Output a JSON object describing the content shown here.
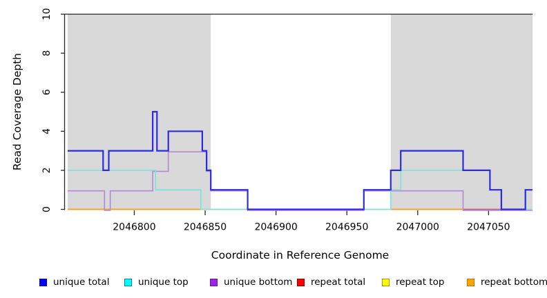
{
  "chart_data": {
    "type": "line",
    "subtype": "step-coverage",
    "title": "",
    "xlabel": "Coordinate in Reference Genome",
    "ylabel": "Read Coverage Depth",
    "xlim": [
      2046753,
      2047081
    ],
    "ylim": [
      0,
      10
    ],
    "grid": false,
    "x_ticks": [
      2046800,
      2046850,
      2046900,
      2046950,
      2047000,
      2047050
    ],
    "x_tick_labels": [
      "2046800",
      "2046850",
      "2046900",
      "2046950",
      "2047000",
      "2047050"
    ],
    "y_ticks": [
      0,
      2,
      4,
      6,
      8,
      10
    ],
    "y_tick_labels": [
      "0",
      "2",
      "4",
      "6",
      "8",
      "10"
    ],
    "shade_color": "#D9D9D9",
    "shaded_regions": [
      {
        "from": 2046753,
        "to": 2046854
      },
      {
        "from": 2046981,
        "to": 2047081
      }
    ],
    "series": [
      {
        "name": "zero-baseline",
        "color": "#98CD98",
        "width": 1.6,
        "y_offset": 0,
        "segments": [
          [
            [
              2046753,
              0
            ],
            [
              2047081,
              0
            ]
          ]
        ]
      },
      {
        "name": "repeat top",
        "color": "#FFFF00",
        "width": 1.6,
        "y_offset": 0,
        "segments": []
      },
      {
        "name": "repeat total",
        "color": "#CE5F72",
        "width": 1.8,
        "y_offset": 0,
        "segments": [
          [
            [
              2047032,
              0
            ],
            [
              2047059,
              0
            ]
          ]
        ]
      },
      {
        "name": "repeat bottom",
        "color": "#FF9E22",
        "width": 2,
        "y_offset": 0,
        "segments": [
          [
            [
              2046753,
              0
            ],
            [
              2046854,
              0
            ]
          ],
          [
            [
              2046981,
              0
            ],
            [
              2047032,
              0
            ]
          ]
        ]
      },
      {
        "name": "unique bottom",
        "color": "#B685D8",
        "width": 1.6,
        "y_offset": 1.5,
        "segments": [
          [
            [
              2046753,
              1
            ],
            [
              2046779,
              0
            ],
            [
              2046783,
              1
            ],
            [
              2046813,
              2
            ],
            [
              2046824,
              3
            ],
            [
              2046851,
              2
            ],
            [
              2046854,
              1
            ],
            [
              2046880,
              0
            ],
            [
              2046962,
              1
            ],
            [
              2047032,
              0
            ],
            [
              2047081,
              0
            ]
          ]
        ]
      },
      {
        "name": "unique top",
        "color": "#82E3DE",
        "width": 1.8,
        "y_offset": 0,
        "segments": [
          [
            [
              2046753,
              2
            ],
            [
              2046815,
              1
            ],
            [
              2046847,
              0
            ],
            [
              2046981,
              1
            ],
            [
              2046988,
              2
            ],
            [
              2047051,
              1
            ],
            [
              2047059,
              0
            ],
            [
              2047081,
              0
            ]
          ]
        ]
      },
      {
        "name": "unique total",
        "color": "#2B2BE0",
        "width": 2.2,
        "y_offset": 0,
        "segments": [
          [
            [
              2046753,
              3
            ],
            [
              2046778,
              2
            ],
            [
              2046782,
              3
            ],
            [
              2046813,
              5
            ],
            [
              2046816,
              3
            ],
            [
              2046824,
              4
            ],
            [
              2046848,
              3
            ],
            [
              2046851,
              2
            ],
            [
              2046854,
              1
            ],
            [
              2046880,
              0
            ],
            [
              2046962,
              1
            ],
            [
              2046981,
              2
            ],
            [
              2046988,
              3
            ],
            [
              2047032,
              2
            ],
            [
              2047051,
              1
            ],
            [
              2047059,
              0
            ],
            [
              2047076,
              1
            ],
            [
              2047081,
              1
            ]
          ]
        ]
      }
    ]
  },
  "legend": {
    "items": [
      {
        "label": "unique total",
        "fill": "#0000FF",
        "border": "#00009B"
      },
      {
        "label": "unique top",
        "fill": "#00FFFF",
        "border": "#008B8B"
      },
      {
        "label": "unique bottom",
        "fill": "#A020F0",
        "border": "#5D1A8B"
      },
      {
        "label": "repeat total",
        "fill": "#FF0000",
        "border": "#8B0000"
      },
      {
        "label": "repeat top",
        "fill": "#FFFF00",
        "border": "#9B9B00"
      },
      {
        "label": "repeat bottom",
        "fill": "#FFA500",
        "border": "#B87400"
      }
    ]
  }
}
